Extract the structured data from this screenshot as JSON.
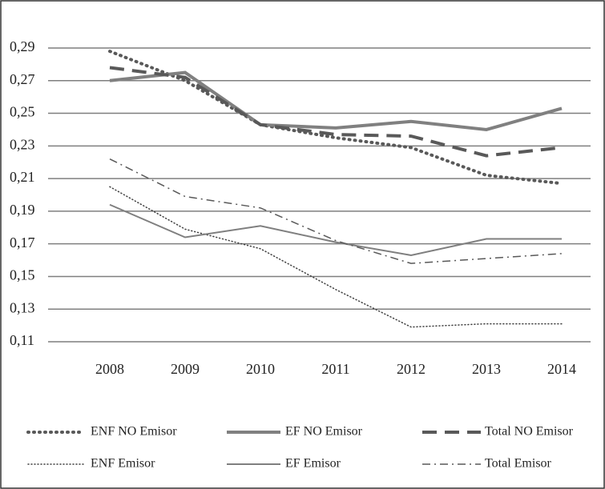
{
  "chart_data": {
    "type": "line",
    "categories": [
      "2008",
      "2009",
      "2010",
      "2011",
      "2012",
      "2013",
      "2014"
    ],
    "ylim": [
      0.11,
      0.29
    ],
    "yticks": [
      {
        "value": 0.11,
        "label": "0,11"
      },
      {
        "value": 0.13,
        "label": "0,13"
      },
      {
        "value": 0.15,
        "label": "0,15"
      },
      {
        "value": 0.17,
        "label": "0,17"
      },
      {
        "value": 0.19,
        "label": "0,19"
      },
      {
        "value": 0.21,
        "label": "0,21"
      },
      {
        "value": 0.23,
        "label": "0,23"
      },
      {
        "value": 0.25,
        "label": "0,25"
      },
      {
        "value": 0.27,
        "label": "0,27"
      },
      {
        "value": 0.29,
        "label": "0,29"
      }
    ],
    "grid": true,
    "series": [
      {
        "name": "ENF NO Emisor",
        "color": "#595959",
        "line_style": "dotted",
        "width": 4,
        "values": [
          0.288,
          0.27,
          0.243,
          0.235,
          0.229,
          0.212,
          0.207
        ]
      },
      {
        "name": "EF NO Emisor",
        "color": "#808080",
        "line_style": "solid",
        "width": 4,
        "values": [
          0.27,
          0.275,
          0.243,
          0.241,
          0.245,
          0.24,
          0.253
        ]
      },
      {
        "name": "Total NO Emisor",
        "color": "#595959",
        "line_style": "dashed",
        "width": 4,
        "values": [
          0.278,
          0.272,
          0.243,
          0.237,
          0.236,
          0.224,
          0.229
        ]
      },
      {
        "name": "ENF Emisor",
        "color": "#404040",
        "line_style": "dotted",
        "width": 1.5,
        "values": [
          0.205,
          0.179,
          0.167,
          0.142,
          0.119,
          0.121,
          0.121
        ]
      },
      {
        "name": "EF Emisor",
        "color": "#7f7f7f",
        "line_style": "solid",
        "width": 2,
        "values": [
          0.194,
          0.174,
          0.181,
          0.171,
          0.163,
          0.173,
          0.173
        ]
      },
      {
        "name": "Total Emisor",
        "color": "#595959",
        "line_style": "dashdot",
        "width": 1.5,
        "values": [
          0.222,
          0.199,
          0.192,
          0.172,
          0.158,
          0.161,
          0.164
        ]
      }
    ]
  }
}
